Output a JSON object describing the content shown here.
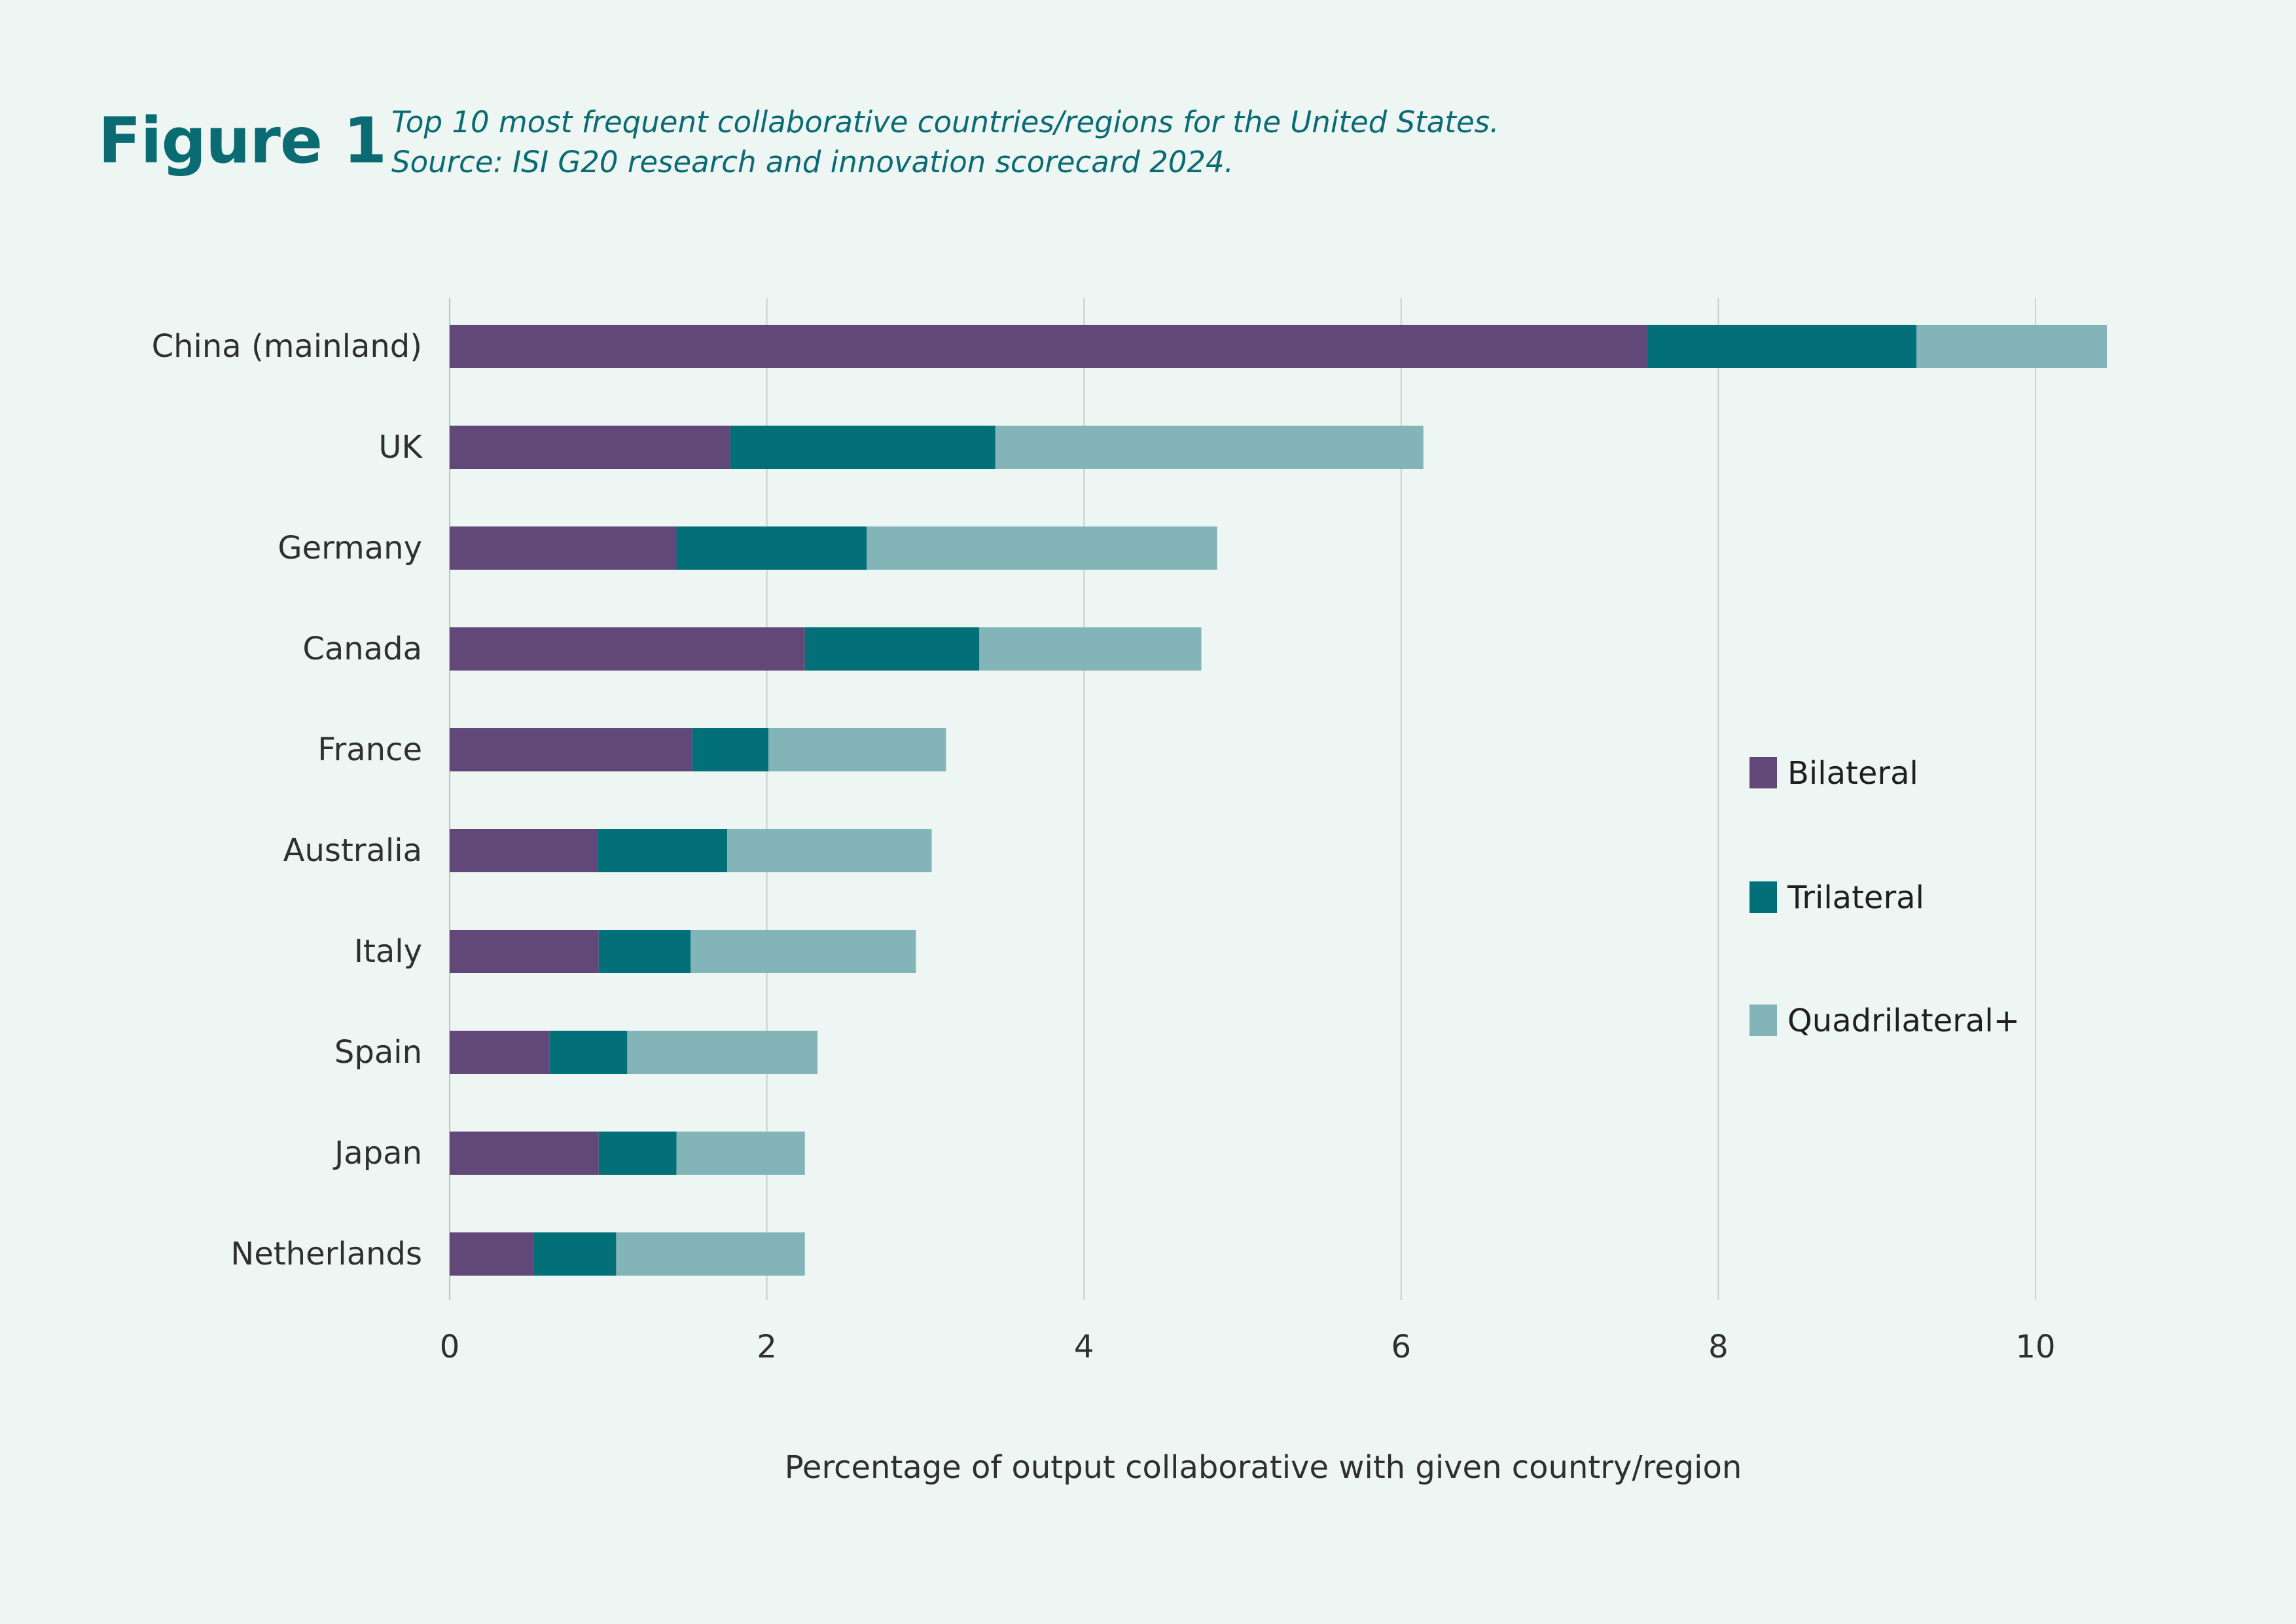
{
  "figure": {
    "label": "Figure 1",
    "caption_line1": "Top 10 most frequent collaborative countries/regions for the United States.",
    "caption_line2": "Source: ISI G20 research and innovation scorecard 2024."
  },
  "chart_data": {
    "type": "bar",
    "orientation": "horizontal",
    "stacked": true,
    "categories": [
      "China (mainland)",
      "UK",
      "Germany",
      "Canada",
      "France",
      "Australia",
      "Italy",
      "Spain",
      "Japan",
      "Netherlands"
    ],
    "series": [
      {
        "name": "Bilateral",
        "color": "#624878",
        "values": [
          7.55,
          1.77,
          1.43,
          2.24,
          1.53,
          0.93,
          0.94,
          0.63,
          0.94,
          0.53
        ]
      },
      {
        "name": "Trilateral",
        "color": "#036f78",
        "values": [
          1.7,
          1.67,
          1.2,
          1.1,
          0.48,
          0.82,
          0.58,
          0.49,
          0.49,
          0.52
        ]
      },
      {
        "name": "Quadrilateral+",
        "color": "#83b5b8",
        "values": [
          1.2,
          2.7,
          2.21,
          1.4,
          1.12,
          1.29,
          1.42,
          1.2,
          0.81,
          1.19
        ]
      }
    ],
    "xlabel": "Percentage of output collaborative with given country/region",
    "ylabel": "",
    "xlim": [
      0,
      10.5
    ],
    "xticks": [
      "0",
      "2",
      "4",
      "6",
      "8",
      "10"
    ],
    "grid": true,
    "legend_position": "right"
  }
}
